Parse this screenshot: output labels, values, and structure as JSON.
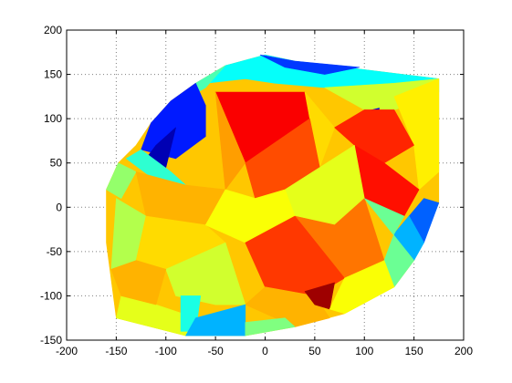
{
  "chart_data": {
    "type": "heatmap",
    "xlim": [
      -200,
      200
    ],
    "ylim": [
      -150,
      200
    ],
    "x_ticks": [
      -200,
      -150,
      -100,
      -50,
      0,
      50,
      100,
      150,
      200
    ],
    "y_ticks": [
      -150,
      -100,
      -50,
      0,
      50,
      100,
      150,
      200
    ],
    "x_tick_labels": [
      "-200",
      "-150",
      "-100",
      "-50",
      "0",
      "50",
      "100",
      "150",
      "200"
    ],
    "y_tick_labels": [
      "-150",
      "-100",
      "-50",
      "0",
      "50",
      "100",
      "150",
      "200"
    ],
    "grid": true,
    "colormap": "jet",
    "clim": [
      0,
      1
    ],
    "boundary": [
      [
        -160,
        20
      ],
      [
        -148,
        50
      ],
      [
        -130,
        70
      ],
      [
        -115,
        95
      ],
      [
        -95,
        120
      ],
      [
        -70,
        140
      ],
      [
        -40,
        160
      ],
      [
        0,
        172
      ],
      [
        30,
        165
      ],
      [
        175,
        145
      ],
      [
        175,
        5
      ],
      [
        150,
        -60
      ],
      [
        130,
        -90
      ],
      [
        80,
        -120
      ],
      [
        30,
        -135
      ],
      [
        -20,
        -145
      ],
      [
        -80,
        -145
      ],
      [
        -150,
        -125
      ],
      [
        -160,
        -40
      ]
    ],
    "surface_patches": [
      {
        "polygon": [
          [
            -160,
            20
          ],
          [
            -148,
            50
          ],
          [
            -130,
            70
          ],
          [
            -115,
            95
          ],
          [
            -95,
            120
          ],
          [
            -70,
            140
          ],
          [
            -40,
            160
          ],
          [
            0,
            172
          ],
          [
            30,
            165
          ],
          [
            175,
            145
          ],
          [
            175,
            5
          ],
          [
            150,
            -60
          ],
          [
            130,
            -90
          ],
          [
            80,
            -120
          ],
          [
            30,
            -135
          ],
          [
            -20,
            -145
          ],
          [
            -80,
            -145
          ],
          [
            -150,
            -125
          ],
          [
            -160,
            -40
          ]
        ],
        "value": 0.68
      },
      {
        "polygon": [
          [
            -40,
            160
          ],
          [
            0,
            172
          ],
          [
            30,
            165
          ],
          [
            175,
            145
          ],
          [
            175,
            130
          ],
          [
            130,
            140
          ],
          [
            60,
            135
          ],
          [
            10,
            140
          ],
          [
            -20,
            145
          ],
          [
            -60,
            140
          ]
        ],
        "value": 0.38
      },
      {
        "polygon": [
          [
            -5,
            172
          ],
          [
            30,
            165
          ],
          [
            95,
            158
          ],
          [
            60,
            150
          ],
          [
            20,
            158
          ]
        ],
        "value": 0.18
      },
      {
        "polygon": [
          [
            -70,
            140
          ],
          [
            -40,
            160
          ],
          [
            -60,
            135
          ],
          [
            -90,
            115
          ],
          [
            -115,
            95
          ]
        ],
        "value": 0.45
      },
      {
        "polygon": [
          [
            -115,
            95
          ],
          [
            -95,
            120
          ],
          [
            -70,
            140
          ],
          [
            -60,
            115
          ],
          [
            -60,
            80
          ],
          [
            -90,
            55
          ],
          [
            -125,
            65
          ]
        ],
        "value": 0.15
      },
      {
        "polygon": [
          [
            -110,
            70
          ],
          [
            -90,
            90
          ],
          [
            -100,
            45
          ],
          [
            -120,
            55
          ]
        ],
        "value": 0.05
      },
      {
        "polygon": [
          [
            -140,
            55
          ],
          [
            -125,
            65
          ],
          [
            -95,
            40
          ],
          [
            -80,
            25
          ],
          [
            -110,
            30
          ]
        ],
        "value": 0.42
      },
      {
        "polygon": [
          [
            -160,
            20
          ],
          [
            -148,
            50
          ],
          [
            -130,
            40
          ],
          [
            -145,
            10
          ]
        ],
        "value": 0.52
      },
      {
        "polygon": [
          [
            -50,
            130
          ],
          [
            40,
            130
          ],
          [
            45,
            100
          ],
          [
            -20,
            50
          ]
        ],
        "value": 0.88
      },
      {
        "polygon": [
          [
            -50,
            130
          ],
          [
            -20,
            50
          ],
          [
            -40,
            20
          ]
        ],
        "value": 0.72
      },
      {
        "polygon": [
          [
            40,
            130
          ],
          [
            70,
            90
          ],
          [
            55,
            45
          ],
          [
            45,
            100
          ]
        ],
        "value": 0.66
      },
      {
        "polygon": [
          [
            -20,
            50
          ],
          [
            45,
            100
          ],
          [
            55,
            45
          ],
          [
            20,
            20
          ],
          [
            -10,
            10
          ]
        ],
        "value": 0.8
      },
      {
        "polygon": [
          [
            60,
            135
          ],
          [
            130,
            140
          ],
          [
            175,
            145
          ],
          [
            175,
            100
          ],
          [
            160,
            120
          ],
          [
            130,
            110
          ],
          [
            100,
            110
          ]
        ],
        "value": 0.58
      },
      {
        "polygon": [
          [
            130,
            125
          ],
          [
            175,
            145
          ],
          [
            175,
            40
          ],
          [
            155,
            20
          ],
          [
            150,
            70
          ]
        ],
        "value": 0.64
      },
      {
        "polygon": [
          [
            100,
            108
          ],
          [
            115,
            112
          ],
          [
            112,
            90
          ],
          [
            98,
            95
          ]
        ],
        "value": 0.08
      },
      {
        "polygon": [
          [
            70,
            90
          ],
          [
            100,
            110
          ],
          [
            130,
            110
          ],
          [
            150,
            70
          ],
          [
            120,
            50
          ],
          [
            90,
            70
          ]
        ],
        "value": 0.84
      },
      {
        "polygon": [
          [
            90,
            70
          ],
          [
            120,
            50
          ],
          [
            155,
            20
          ],
          [
            140,
            -10
          ],
          [
            100,
            10
          ]
        ],
        "value": 0.86
      },
      {
        "polygon": [
          [
            160,
            10
          ],
          [
            175,
            5
          ],
          [
            160,
            -40
          ],
          [
            140,
            -60
          ],
          [
            130,
            -30
          ]
        ],
        "value": 0.22
      },
      {
        "polygon": [
          [
            130,
            -30
          ],
          [
            140,
            -60
          ],
          [
            150,
            -60
          ],
          [
            160,
            -40
          ],
          [
            145,
            -10
          ]
        ],
        "value": 0.3
      },
      {
        "polygon": [
          [
            20,
            20
          ],
          [
            55,
            45
          ],
          [
            90,
            70
          ],
          [
            100,
            10
          ],
          [
            70,
            -20
          ],
          [
            30,
            -10
          ]
        ],
        "value": 0.6
      },
      {
        "polygon": [
          [
            30,
            -10
          ],
          [
            70,
            -20
          ],
          [
            100,
            10
          ],
          [
            120,
            -60
          ],
          [
            80,
            -80
          ]
        ],
        "value": 0.76
      },
      {
        "polygon": [
          [
            100,
            10
          ],
          [
            140,
            -10
          ],
          [
            130,
            -30
          ],
          [
            120,
            -60
          ],
          [
            130,
            -90
          ],
          [
            150,
            -60
          ]
        ],
        "value": 0.48
      },
      {
        "polygon": [
          [
            -130,
            40
          ],
          [
            -80,
            25
          ],
          [
            -40,
            20
          ],
          [
            -60,
            -20
          ],
          [
            -120,
            -10
          ]
        ],
        "value": 0.7
      },
      {
        "polygon": [
          [
            -150,
            10
          ],
          [
            -120,
            -10
          ],
          [
            -130,
            -60
          ],
          [
            -155,
            -70
          ]
        ],
        "value": 0.55
      },
      {
        "polygon": [
          [
            -120,
            -10
          ],
          [
            -60,
            -20
          ],
          [
            -40,
            -40
          ],
          [
            -100,
            -70
          ],
          [
            -130,
            -60
          ]
        ],
        "value": 0.66
      },
      {
        "polygon": [
          [
            -40,
            20
          ],
          [
            -10,
            10
          ],
          [
            20,
            20
          ],
          [
            30,
            -10
          ],
          [
            -20,
            -40
          ],
          [
            -60,
            -20
          ]
        ],
        "value": 0.62
      },
      {
        "polygon": [
          [
            -20,
            -40
          ],
          [
            30,
            -10
          ],
          [
            80,
            -80
          ],
          [
            50,
            -100
          ],
          [
            0,
            -90
          ]
        ],
        "value": 0.82
      },
      {
        "polygon": [
          [
            0,
            -90
          ],
          [
            50,
            -100
          ],
          [
            65,
            -125
          ],
          [
            30,
            -135
          ],
          [
            -20,
            -110
          ]
        ],
        "value": 0.7
      },
      {
        "polygon": [
          [
            40,
            -95
          ],
          [
            70,
            -85
          ],
          [
            65,
            -115
          ],
          [
            50,
            -110
          ]
        ],
        "value": 0.97
      },
      {
        "polygon": [
          [
            80,
            -80
          ],
          [
            120,
            -60
          ],
          [
            130,
            -90
          ],
          [
            80,
            -120
          ],
          [
            65,
            -115
          ]
        ],
        "value": 0.62
      },
      {
        "polygon": [
          [
            -100,
            -70
          ],
          [
            -40,
            -40
          ],
          [
            -20,
            -110
          ],
          [
            -50,
            -110
          ],
          [
            -90,
            -100
          ]
        ],
        "value": 0.58
      },
      {
        "polygon": [
          [
            -150,
            -125
          ],
          [
            -80,
            -145
          ],
          [
            -70,
            -125
          ],
          [
            -110,
            -110
          ],
          [
            -145,
            -100
          ]
        ],
        "value": 0.6
      },
      {
        "polygon": [
          [
            -85,
            -100
          ],
          [
            -65,
            -100
          ],
          [
            -70,
            -140
          ],
          [
            -85,
            -140
          ]
        ],
        "value": 0.4
      },
      {
        "polygon": [
          [
            -70,
            -125
          ],
          [
            -20,
            -110
          ],
          [
            -20,
            -145
          ],
          [
            -80,
            -145
          ]
        ],
        "value": 0.3
      },
      {
        "polygon": [
          [
            -145,
            -100
          ],
          [
            -110,
            -110
          ],
          [
            -100,
            -70
          ],
          [
            -130,
            -60
          ],
          [
            -155,
            -70
          ]
        ],
        "value": 0.7
      },
      {
        "polygon": [
          [
            -20,
            -145
          ],
          [
            30,
            -135
          ],
          [
            20,
            -125
          ],
          [
            -20,
            -130
          ]
        ],
        "value": 0.5
      }
    ]
  }
}
